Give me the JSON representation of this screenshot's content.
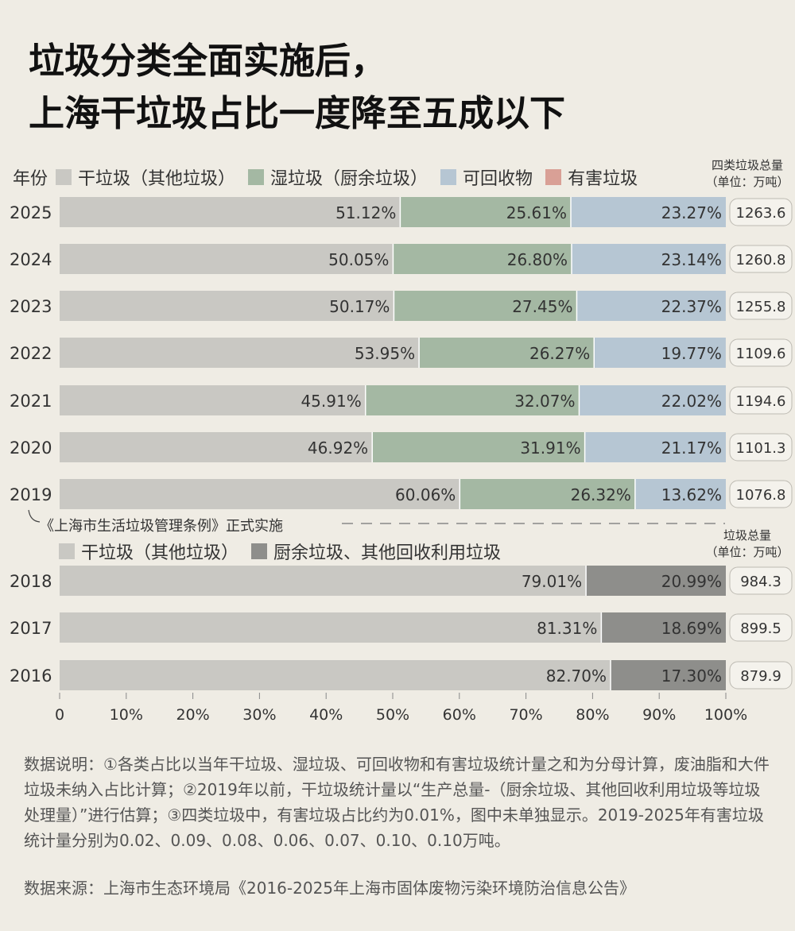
{
  "title": {
    "line1": "垃圾分类全面实施后，",
    "line2": "上海干垃圾占比一度降至五成以下"
  },
  "legend_top": {
    "year_label": "年份",
    "items": [
      {
        "label": "干垃圾（其他垃圾）",
        "color": "#c9c8c3"
      },
      {
        "label": "湿垃圾（厨余垃圾）",
        "color": "#a4b8a3"
      },
      {
        "label": "可回收物",
        "color": "#b6c6d3"
      },
      {
        "label": "有害垃圾",
        "color": "#d9a096"
      }
    ],
    "total_header_line1": "四类垃圾总量",
    "total_header_line2": "（单位：万吨）"
  },
  "law_note": "《上海市生活垃圾管理条例》正式实施",
  "legend_bottom": {
    "items": [
      {
        "label": "干垃圾（其他垃圾）",
        "color": "#c9c8c3"
      },
      {
        "label": "厨余垃圾、其他回收利用垃圾",
        "color": "#8e8e8b"
      }
    ],
    "total_header_line1": "垃圾总量",
    "total_header_line2": "（单位：万吨）"
  },
  "chart_data": {
    "type": "bar",
    "orientation": "horizontal-stacked",
    "xlim": [
      0,
      100
    ],
    "x_ticks": [
      "0",
      "10%",
      "20%",
      "30%",
      "40%",
      "50%",
      "60%",
      "70%",
      "80%",
      "90%",
      "100%"
    ],
    "group_four_class": {
      "categories": [
        "2025",
        "2024",
        "2023",
        "2022",
        "2021",
        "2020",
        "2019"
      ],
      "series": [
        {
          "name": "干垃圾（其他垃圾）",
          "color": "#c9c8c3",
          "values": [
            51.12,
            50.05,
            50.17,
            53.95,
            45.91,
            46.92,
            60.06
          ],
          "labels": [
            "51.12%",
            "50.05%",
            "50.17%",
            "53.95%",
            "45.91%",
            "46.92%",
            "60.06%"
          ]
        },
        {
          "name": "湿垃圾（厨余垃圾）",
          "color": "#a4b8a3",
          "values": [
            25.61,
            26.8,
            27.45,
            26.27,
            32.07,
            31.91,
            26.32
          ],
          "labels": [
            "25.61%",
            "26.80%",
            "27.45%",
            "26.27%",
            "32.07%",
            "31.91%",
            "26.32%"
          ]
        },
        {
          "name": "可回收物",
          "color": "#b6c6d3",
          "values": [
            23.27,
            23.14,
            22.37,
            19.77,
            22.02,
            21.17,
            13.62
          ],
          "labels": [
            "23.27%",
            "23.14%",
            "22.37%",
            "19.77%",
            "22.02%",
            "21.17%",
            "13.62%"
          ]
        }
      ],
      "totals": [
        "1263.6",
        "1260.8",
        "1255.8",
        "1109.6",
        "1194.6",
        "1101.3",
        "1076.8"
      ]
    },
    "group_two_class": {
      "categories": [
        "2018",
        "2017",
        "2016"
      ],
      "series": [
        {
          "name": "干垃圾（其他垃圾）",
          "color": "#c9c8c3",
          "values": [
            79.01,
            81.31,
            82.7
          ],
          "labels": [
            "79.01%",
            "81.31%",
            "82.70%"
          ]
        },
        {
          "name": "厨余垃圾、其他回收利用垃圾",
          "color": "#8e8e8b",
          "values": [
            20.99,
            18.69,
            17.3
          ],
          "labels": [
            "20.99%",
            "18.69%",
            "17.30%"
          ]
        }
      ],
      "totals": [
        "984.3",
        "899.5",
        "879.9"
      ]
    }
  },
  "notes": "数据说明：①各类占比以当年干垃圾、湿垃圾、可回收物和有害垃圾统计量之和为分母计算，废油脂和大件垃圾未纳入占比计算；②2019年以前，干垃圾统计量以“生产总量-（厨余垃圾、其他回收利用垃圾等垃圾处理量）”进行估算；③四类垃圾中，有害垃圾占比约为0.01%，图中未单独显示。2019-2025年有害垃圾统计量分别为0.02、0.09、0.08、0.06、0.07、0.10、0.10万吨。",
  "source": "数据来源：上海市生态环境局《2016-2025年上海市固体废物污染环境防治信息公告》"
}
